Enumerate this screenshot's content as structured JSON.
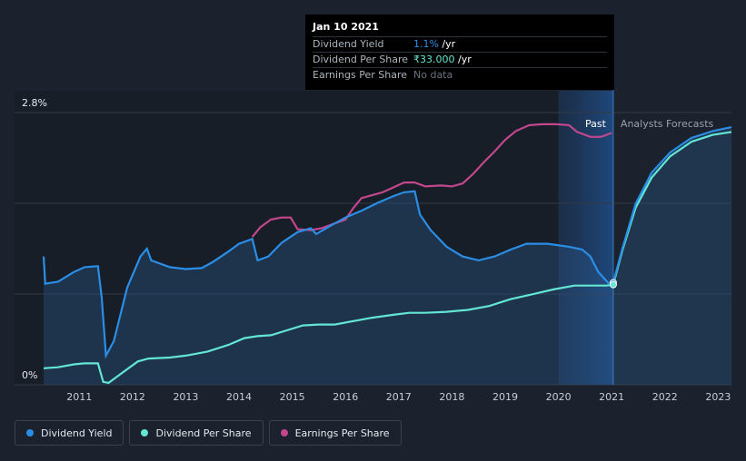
{
  "tooltip": {
    "date": "Jan 10 2021",
    "rows": [
      {
        "label": "Dividend Yield",
        "value": "1.1%",
        "unit": " /yr"
      },
      {
        "label": "Dividend Per Share",
        "value": "₹33.000",
        "unit": " /yr"
      },
      {
        "label": "Earnings Per Share",
        "value": "No data",
        "unit": ""
      }
    ]
  },
  "regions": {
    "past_label": "Past",
    "forecast_label": "Analysts Forecasts"
  },
  "legend": [
    {
      "label": "Dividend Yield",
      "color": "#2b8ee6"
    },
    {
      "label": "Dividend Per Share",
      "color": "#63e6d3"
    },
    {
      "label": "Earnings Per Share",
      "color": "#c2478c"
    }
  ],
  "colors": {
    "yield": "#2b8ee6",
    "dps": "#63e6d3",
    "eps": "#c2478c",
    "grid": "#323a46",
    "past_band": "#1e3a5f"
  },
  "chart_data": {
    "type": "line",
    "title": "",
    "xlabel": "",
    "ylabel": "",
    "x_ticks": [
      "2011",
      "2012",
      "2013",
      "2014",
      "2015",
      "2016",
      "2017",
      "2018",
      "2019",
      "2020",
      "2021",
      "2022",
      "2023"
    ],
    "y_tick_labels": [
      "0%",
      "2.8%"
    ],
    "ylim": [
      0,
      2.8
    ],
    "xlim": [
      2010.33,
      2023.25
    ],
    "now": 2021.03,
    "past_band_start": 2020.0,
    "series": [
      {
        "name": "Dividend Yield",
        "key": "yield",
        "points": [
          [
            2010.33,
            1.32
          ],
          [
            2010.36,
            1.04
          ],
          [
            2010.6,
            1.06
          ],
          [
            2010.9,
            1.16
          ],
          [
            2011.1,
            1.21
          ],
          [
            2011.35,
            1.22
          ],
          [
            2011.42,
            0.9
          ],
          [
            2011.5,
            0.3
          ],
          [
            2011.65,
            0.45
          ],
          [
            2011.9,
            1.0
          ],
          [
            2012.15,
            1.32
          ],
          [
            2012.27,
            1.4
          ],
          [
            2012.35,
            1.28
          ],
          [
            2012.7,
            1.21
          ],
          [
            2013.0,
            1.19
          ],
          [
            2013.3,
            1.2
          ],
          [
            2013.5,
            1.26
          ],
          [
            2013.8,
            1.37
          ],
          [
            2014.0,
            1.45
          ],
          [
            2014.25,
            1.5
          ],
          [
            2014.35,
            1.28
          ],
          [
            2014.55,
            1.32
          ],
          [
            2014.8,
            1.46
          ],
          [
            2015.1,
            1.57
          ],
          [
            2015.35,
            1.61
          ],
          [
            2015.45,
            1.55
          ],
          [
            2015.7,
            1.63
          ],
          [
            2016.0,
            1.72
          ],
          [
            2016.3,
            1.79
          ],
          [
            2016.6,
            1.87
          ],
          [
            2016.9,
            1.94
          ],
          [
            2017.1,
            1.98
          ],
          [
            2017.3,
            1.99
          ],
          [
            2017.4,
            1.75
          ],
          [
            2017.6,
            1.59
          ],
          [
            2017.9,
            1.42
          ],
          [
            2018.2,
            1.32
          ],
          [
            2018.5,
            1.28
          ],
          [
            2018.8,
            1.32
          ],
          [
            2019.1,
            1.39
          ],
          [
            2019.4,
            1.45
          ],
          [
            2019.8,
            1.45
          ],
          [
            2020.2,
            1.42
          ],
          [
            2020.45,
            1.39
          ],
          [
            2020.6,
            1.32
          ],
          [
            2020.75,
            1.16
          ],
          [
            2020.95,
            1.04
          ],
          [
            2021.03,
            1.05
          ],
          [
            2021.2,
            1.4
          ],
          [
            2021.45,
            1.86
          ],
          [
            2021.75,
            2.18
          ],
          [
            2022.1,
            2.39
          ],
          [
            2022.5,
            2.54
          ],
          [
            2022.9,
            2.61
          ],
          [
            2023.25,
            2.65
          ]
        ]
      },
      {
        "name": "Dividend Per Share",
        "key": "dps",
        "points": [
          [
            2010.33,
            0.17
          ],
          [
            2010.6,
            0.18
          ],
          [
            2010.9,
            0.21
          ],
          [
            2011.1,
            0.22
          ],
          [
            2011.35,
            0.22
          ],
          [
            2011.45,
            0.03
          ],
          [
            2011.55,
            0.02
          ],
          [
            2011.8,
            0.12
          ],
          [
            2012.1,
            0.24
          ],
          [
            2012.3,
            0.27
          ],
          [
            2012.7,
            0.28
          ],
          [
            2013.0,
            0.3
          ],
          [
            2013.4,
            0.34
          ],
          [
            2013.8,
            0.41
          ],
          [
            2014.1,
            0.48
          ],
          [
            2014.35,
            0.5
          ],
          [
            2014.6,
            0.51
          ],
          [
            2014.9,
            0.56
          ],
          [
            2015.2,
            0.61
          ],
          [
            2015.5,
            0.62
          ],
          [
            2015.8,
            0.62
          ],
          [
            2016.2,
            0.66
          ],
          [
            2016.5,
            0.69
          ],
          [
            2016.9,
            0.72
          ],
          [
            2017.2,
            0.74
          ],
          [
            2017.5,
            0.74
          ],
          [
            2017.9,
            0.75
          ],
          [
            2018.3,
            0.77
          ],
          [
            2018.7,
            0.81
          ],
          [
            2019.1,
            0.88
          ],
          [
            2019.5,
            0.93
          ],
          [
            2019.9,
            0.98
          ],
          [
            2020.3,
            1.02
          ],
          [
            2020.6,
            1.02
          ],
          [
            2020.9,
            1.02
          ],
          [
            2021.03,
            1.03
          ],
          [
            2021.2,
            1.38
          ],
          [
            2021.45,
            1.82
          ],
          [
            2021.75,
            2.13
          ],
          [
            2022.1,
            2.35
          ],
          [
            2022.5,
            2.5
          ],
          [
            2022.9,
            2.57
          ],
          [
            2023.25,
            2.6
          ]
        ]
      },
      {
        "name": "Earnings Per Share",
        "key": "eps",
        "points": [
          [
            2014.25,
            1.52
          ],
          [
            2014.4,
            1.62
          ],
          [
            2014.6,
            1.7
          ],
          [
            2014.8,
            1.72
          ],
          [
            2014.97,
            1.72
          ],
          [
            2015.1,
            1.6
          ],
          [
            2015.35,
            1.59
          ],
          [
            2015.55,
            1.61
          ],
          [
            2015.75,
            1.65
          ],
          [
            2016.0,
            1.7
          ],
          [
            2016.15,
            1.82
          ],
          [
            2016.3,
            1.92
          ],
          [
            2016.5,
            1.95
          ],
          [
            2016.7,
            1.98
          ],
          [
            2016.9,
            2.03
          ],
          [
            2017.1,
            2.08
          ],
          [
            2017.3,
            2.08
          ],
          [
            2017.5,
            2.04
          ],
          [
            2017.8,
            2.05
          ],
          [
            2018.0,
            2.04
          ],
          [
            2018.2,
            2.07
          ],
          [
            2018.4,
            2.17
          ],
          [
            2018.6,
            2.29
          ],
          [
            2018.8,
            2.4
          ],
          [
            2019.0,
            2.52
          ],
          [
            2019.2,
            2.61
          ],
          [
            2019.45,
            2.67
          ],
          [
            2019.7,
            2.68
          ],
          [
            2019.95,
            2.68
          ],
          [
            2020.2,
            2.67
          ],
          [
            2020.35,
            2.6
          ],
          [
            2020.6,
            2.55
          ],
          [
            2020.8,
            2.55
          ],
          [
            2021.0,
            2.59
          ]
        ]
      }
    ]
  }
}
